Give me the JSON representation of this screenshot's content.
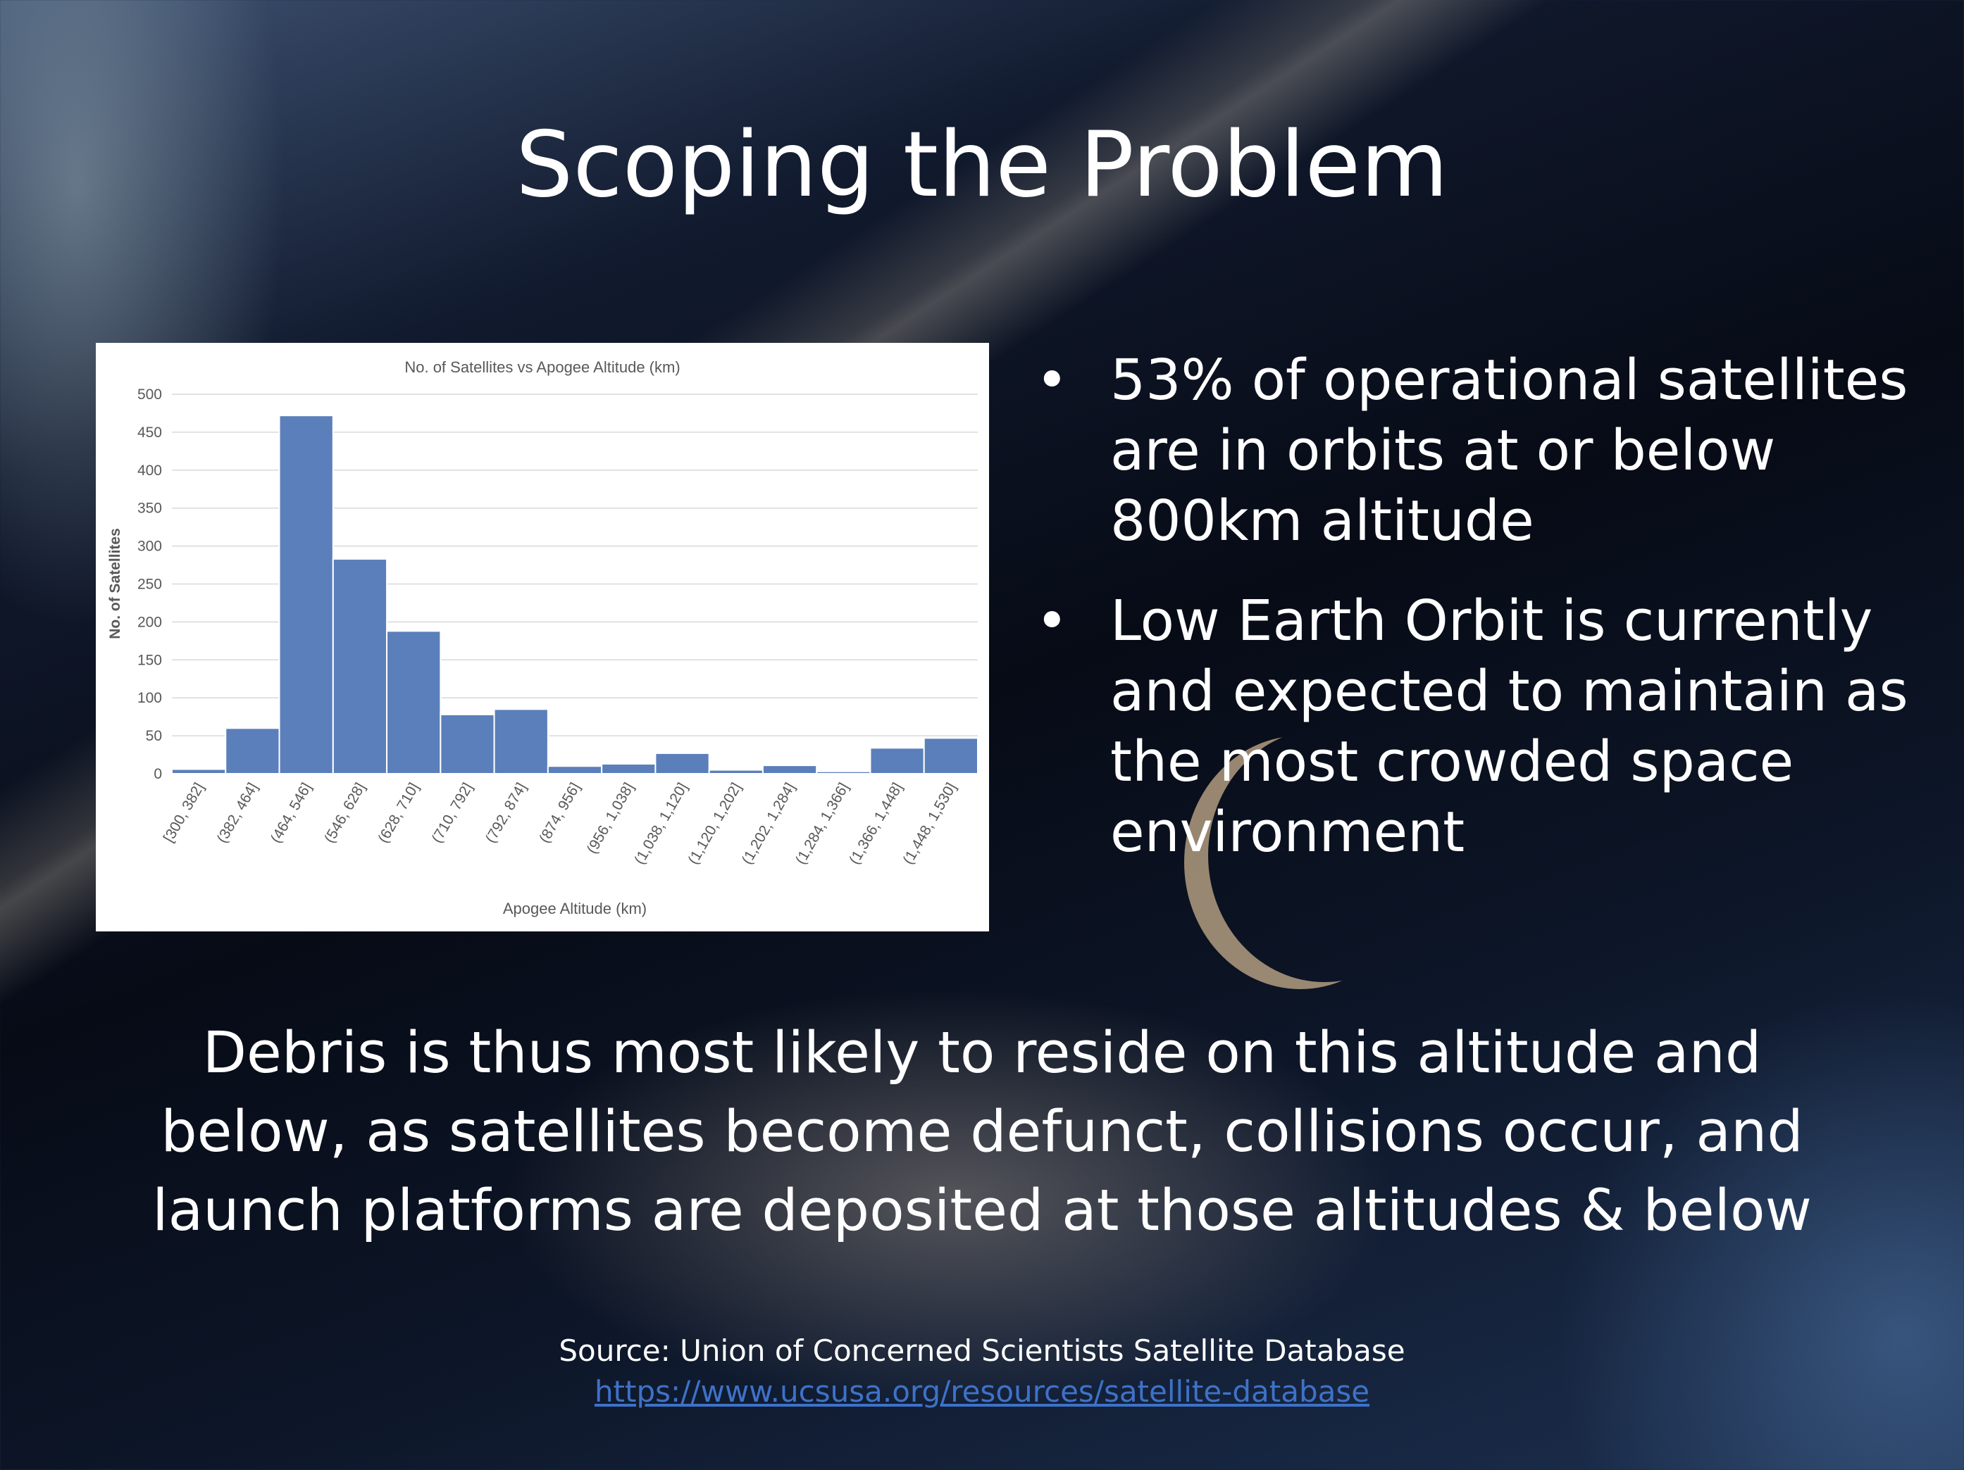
{
  "slide": {
    "title": "Scoping the Problem",
    "bullets": [
      "53% of operational satellites are in orbits at or below 800km altitude",
      "Low Earth Orbit is currently and expected to maintain as the most crowded space environment"
    ],
    "bullet_symbol": "•",
    "summary": "Debris is thus most likely to reside on this altitude and below, as satellites become defunct, collisions occur, and launch platforms are deposited at those altitudes & below",
    "source_label": "Source: Union of Concerned Scientists Satellite Database",
    "source_link": "https://www.ucsusa.org/resources/satellite-database"
  },
  "colors": {
    "bar": "#5b7fbb",
    "link": "#3e72c8",
    "text": "#ffffff"
  },
  "chart_data": {
    "type": "bar",
    "title": "No. of Satellites vs Apogee Altitude (km)",
    "xlabel": "Apogee Altitude (km)",
    "ylabel": "No. of Satellites",
    "ylim": [
      0,
      500
    ],
    "yticks": [
      0,
      50,
      100,
      150,
      200,
      250,
      300,
      350,
      400,
      450,
      500
    ],
    "grid": true,
    "categories": [
      "[300, 382]",
      "(382, 464]",
      "(464, 546]",
      "(546, 628]",
      "(628, 710]",
      "(710, 792]",
      "(792, 874]",
      "(874, 956]",
      "(956, 1,038]",
      "(1,038, 1,120]",
      "(1,120, 1,202]",
      "(1,202, 1,284]",
      "(1,284, 1,366]",
      "(1,366, 1,448]",
      "(1,448, 1,530]"
    ],
    "values": [
      6,
      60,
      472,
      283,
      188,
      78,
      85,
      10,
      13,
      27,
      5,
      11,
      3,
      34,
      47
    ]
  }
}
